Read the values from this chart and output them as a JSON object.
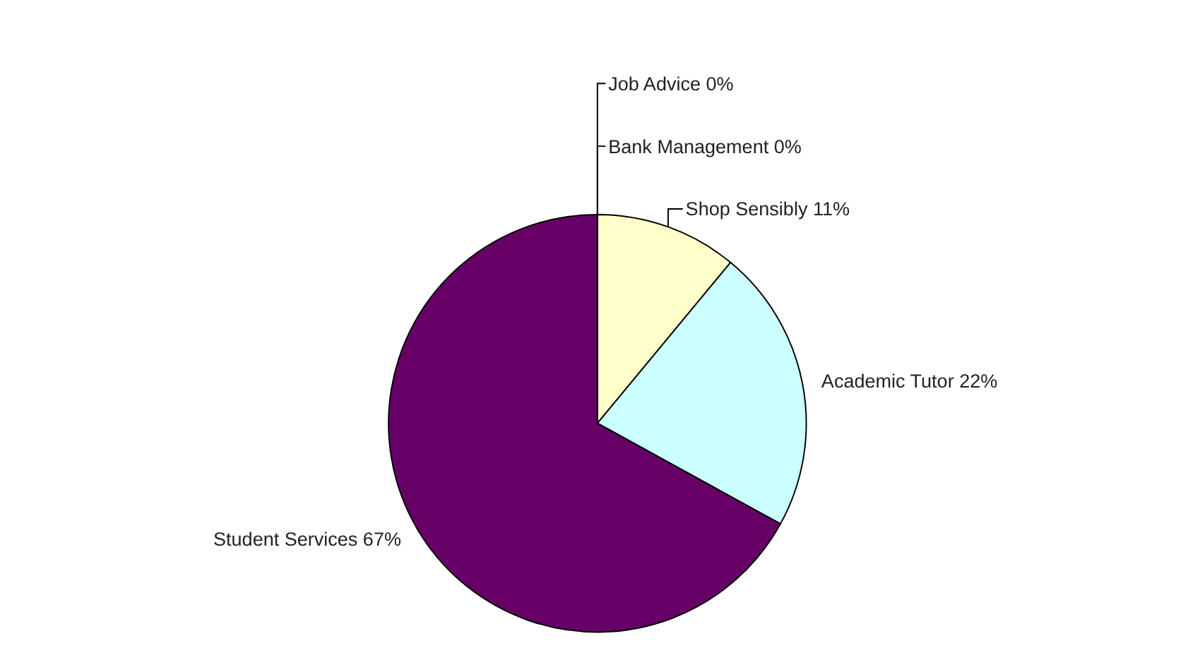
{
  "chart_data": {
    "type": "pie",
    "categories": [
      "Job Advice",
      "Bank Management",
      "Shop Sensibly",
      "Academic Tutor",
      "Student Services"
    ],
    "values": [
      0,
      0,
      11,
      22,
      67
    ],
    "colors": [
      "#9999ff",
      "#993366",
      "#ffffcc",
      "#ccffff",
      "#660066"
    ],
    "value_labels": [
      "0%",
      "0%",
      "11%",
      "22%",
      "67%"
    ],
    "legend": false
  }
}
